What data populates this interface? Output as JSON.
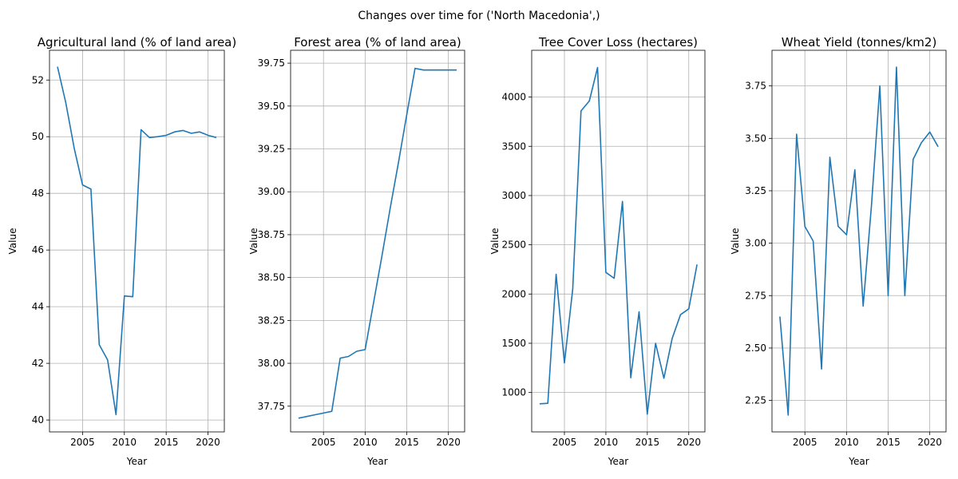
{
  "figure": {
    "suptitle": "Changes over time for ('North Macedonia',)"
  },
  "chart_data": [
    {
      "type": "line",
      "title": "Agricultural land (% of land area)",
      "xlabel": "Year",
      "ylabel": "Value",
      "xlim": [
        2001.05,
        2021.95
      ],
      "ylim": [
        39.58,
        53.05
      ],
      "xticks": [
        2005,
        2010,
        2015,
        2020
      ],
      "yticks": [
        40,
        42,
        44,
        46,
        48,
        50,
        52
      ],
      "ytick_labels": [
        "40",
        "42",
        "44",
        "46",
        "48",
        "50",
        "52"
      ],
      "grid": true,
      "x": [
        2002,
        2003,
        2004,
        2005,
        2006,
        2007,
        2008,
        2009,
        2010,
        2011,
        2012,
        2013,
        2014,
        2015,
        2016,
        2017,
        2018,
        2019,
        2020,
        2021
      ],
      "values": [
        52.47,
        51.2,
        49.6,
        48.3,
        48.15,
        42.66,
        42.12,
        40.19,
        44.38,
        44.35,
        50.25,
        49.97,
        50.0,
        50.05,
        50.17,
        50.22,
        50.12,
        50.17,
        50.05,
        49.97
      ]
    },
    {
      "type": "line",
      "title": "Forest area (% of land area)",
      "xlabel": "Year",
      "ylabel": "Value",
      "xlim": [
        2001.05,
        2021.95
      ],
      "ylim": [
        37.6,
        39.825
      ],
      "xticks": [
        2005,
        2010,
        2015,
        2020
      ],
      "yticks": [
        37.75,
        38.0,
        38.25,
        38.5,
        38.75,
        39.0,
        39.25,
        39.5,
        39.75
      ],
      "ytick_labels": [
        "37.75",
        "38.00",
        "38.25",
        "38.50",
        "38.75",
        "39.00",
        "39.25",
        "39.50",
        "39.75"
      ],
      "grid": true,
      "x": [
        2002,
        2003,
        2004,
        2005,
        2006,
        2007,
        2008,
        2009,
        2010,
        2011,
        2012,
        2013,
        2014,
        2015,
        2016,
        2017,
        2018,
        2019,
        2020,
        2021
      ],
      "values": [
        37.68,
        37.69,
        37.7,
        37.71,
        37.72,
        38.03,
        38.04,
        38.07,
        38.08,
        38.35,
        38.62,
        38.9,
        39.17,
        39.45,
        39.72,
        39.71,
        39.71,
        39.71,
        39.71,
        39.71
      ]
    },
    {
      "type": "line",
      "title": "Tree Cover Loss (hectares)",
      "xlabel": "Year",
      "ylabel": "Value",
      "xlim": [
        2001.05,
        2021.95
      ],
      "ylim": [
        600,
        4475
      ],
      "xticks": [
        2005,
        2010,
        2015,
        2020
      ],
      "yticks": [
        1000,
        1500,
        2000,
        2500,
        3000,
        3500,
        4000
      ],
      "ytick_labels": [
        "1000",
        "1500",
        "2000",
        "2500",
        "3000",
        "3500",
        "4000"
      ],
      "grid": true,
      "x": [
        2002,
        2003,
        2004,
        2005,
        2006,
        2007,
        2008,
        2009,
        2010,
        2011,
        2012,
        2013,
        2014,
        2015,
        2016,
        2017,
        2018,
        2019,
        2020,
        2021
      ],
      "values": [
        885,
        890,
        2200,
        1300,
        2050,
        3860,
        3960,
        4300,
        2220,
        2160,
        2940,
        1150,
        1820,
        780,
        1500,
        1145,
        1550,
        1790,
        1850,
        2300
      ]
    },
    {
      "type": "line",
      "title": "Wheat Yield (tonnes/km2)",
      "xlabel": "Year",
      "ylabel": "Value",
      "xlim": [
        2001.05,
        2021.95
      ],
      "ylim": [
        2.1,
        3.92
      ],
      "xticks": [
        2005,
        2010,
        2015,
        2020
      ],
      "yticks": [
        2.25,
        2.5,
        2.75,
        3.0,
        3.25,
        3.5,
        3.75
      ],
      "ytick_labels": [
        "2.25",
        "2.50",
        "2.75",
        "3.00",
        "3.25",
        "3.50",
        "3.75"
      ],
      "grid": true,
      "x": [
        2002,
        2003,
        2004,
        2005,
        2006,
        2007,
        2008,
        2009,
        2010,
        2011,
        2012,
        2013,
        2014,
        2015,
        2016,
        2017,
        2018,
        2019,
        2020,
        2021
      ],
      "values": [
        2.65,
        2.18,
        3.52,
        3.08,
        3.01,
        2.4,
        3.41,
        3.08,
        3.04,
        3.35,
        2.7,
        3.18,
        3.75,
        2.75,
        3.84,
        2.75,
        3.4,
        3.48,
        3.53,
        3.46
      ]
    }
  ]
}
